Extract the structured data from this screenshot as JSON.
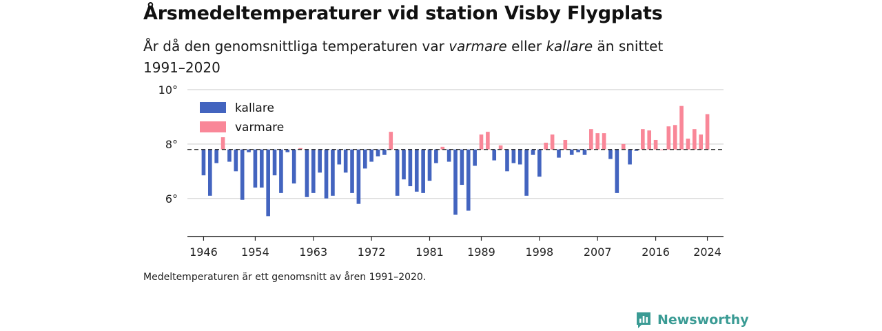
{
  "title": "Årsmedeltemperaturer vid station Visby Flygplats",
  "subtitle": {
    "part1": "År då den genomsnittliga temperaturen var ",
    "warm_word": "varmare",
    "part2": " eller ",
    "cold_word": "kallare",
    "part3": " än snittet 1991–2020"
  },
  "note": "Medeltemperaturen är ett genomsnitt av åren 1991–2020.",
  "brand": "Newsworthy",
  "colors": {
    "cold": "#4364bf",
    "warm": "#f98798",
    "brand": "#3a9b94"
  },
  "chart_data": {
    "type": "bar",
    "baseline": 7.8,
    "ylim": [
      4.6,
      10.0
    ],
    "xlim": [
      1943.5,
      2026.5
    ],
    "y_ticks": [
      6,
      8,
      10
    ],
    "y_tick_labels": [
      "6°",
      "8°",
      "10°"
    ],
    "x_ticks": [
      1946,
      1954,
      1963,
      1972,
      1981,
      1989,
      1998,
      2007,
      2016,
      2024
    ],
    "legend": [
      {
        "name": "kallare",
        "color": "#4364bf"
      },
      {
        "name": "varmare",
        "color": "#f98798"
      }
    ],
    "legend_position": "top-left",
    "years": [
      1946,
      1947,
      1948,
      1949,
      1950,
      1951,
      1952,
      1953,
      1954,
      1955,
      1956,
      1957,
      1958,
      1959,
      1960,
      1961,
      1962,
      1963,
      1964,
      1965,
      1966,
      1967,
      1968,
      1969,
      1970,
      1971,
      1972,
      1973,
      1974,
      1975,
      1976,
      1977,
      1978,
      1979,
      1980,
      1981,
      1982,
      1983,
      1984,
      1985,
      1986,
      1987,
      1988,
      1989,
      1990,
      1991,
      1992,
      1993,
      1994,
      1995,
      1996,
      1997,
      1998,
      1999,
      2000,
      2001,
      2002,
      2003,
      2004,
      2005,
      2006,
      2007,
      2008,
      2009,
      2010,
      2011,
      2012,
      2013,
      2014,
      2015,
      2016,
      2017,
      2018,
      2019,
      2020,
      2021,
      2022,
      2023,
      2024
    ],
    "values": [
      6.85,
      6.1,
      7.3,
      8.25,
      7.35,
      7.0,
      5.95,
      7.7,
      6.4,
      6.4,
      5.35,
      6.85,
      6.2,
      7.7,
      6.55,
      7.85,
      6.05,
      6.2,
      6.95,
      6.0,
      6.1,
      7.25,
      6.95,
      6.2,
      5.8,
      7.1,
      7.35,
      7.55,
      7.6,
      8.45,
      6.1,
      6.7,
      6.45,
      6.25,
      6.2,
      6.65,
      7.3,
      7.9,
      7.35,
      5.4,
      6.5,
      5.55,
      7.2,
      8.35,
      8.45,
      7.4,
      7.95,
      7.0,
      7.3,
      7.25,
      6.1,
      7.6,
      6.8,
      8.05,
      8.35,
      7.5,
      8.15,
      7.6,
      7.7,
      7.6,
      8.55,
      8.4,
      8.4,
      7.45,
      6.2,
      8.0,
      7.25,
      7.75,
      8.55,
      8.5,
      8.15,
      7.8,
      8.65,
      8.7,
      9.4,
      8.2,
      8.55,
      8.35,
      9.1
    ]
  }
}
